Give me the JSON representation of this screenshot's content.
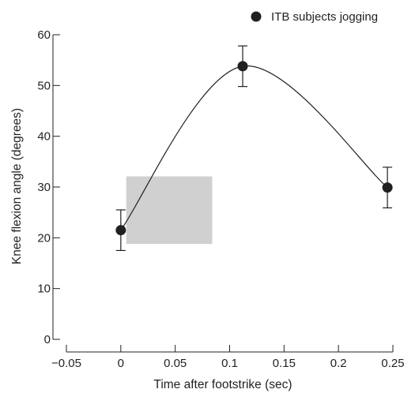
{
  "chart_data": {
    "type": "scatter",
    "xlabel": "Time after footstrike (sec)",
    "ylabel": "Knee flexion angle (degrees)",
    "xlim": [
      -0.05,
      0.25
    ],
    "ylim": [
      0,
      60
    ],
    "x_ticks": [
      -0.05,
      0,
      0.05,
      0.1,
      0.15,
      0.2,
      0.25
    ],
    "x_tick_labels": [
      "−0.05",
      "0",
      "0.05",
      "0.1",
      "0.15",
      "0.2",
      "0.25"
    ],
    "y_ticks": [
      0,
      10,
      20,
      30,
      40,
      50,
      60
    ],
    "y_tick_labels": [
      "0",
      "10",
      "20",
      "30",
      "40",
      "50",
      "60"
    ],
    "legend": {
      "position": "top-right"
    },
    "series": [
      {
        "name": "ITB subjects jogging",
        "points": [
          {
            "x": 0,
            "y": 21.5,
            "err_low": 17.5,
            "err_high": 25.5
          },
          {
            "x": 0.112,
            "y": 53.8,
            "err_low": 49.8,
            "err_high": 57.8
          },
          {
            "x": 0.245,
            "y": 29.9,
            "err_low": 25.9,
            "err_high": 33.9
          }
        ]
      }
    ],
    "shaded_region": {
      "x": [
        0.005,
        0.084
      ],
      "y": [
        18.8,
        32.1
      ],
      "color": "#d0d0d0"
    },
    "colors": {
      "marker": "#231f20",
      "line": "#231f20",
      "axis": "#231f20"
    }
  }
}
